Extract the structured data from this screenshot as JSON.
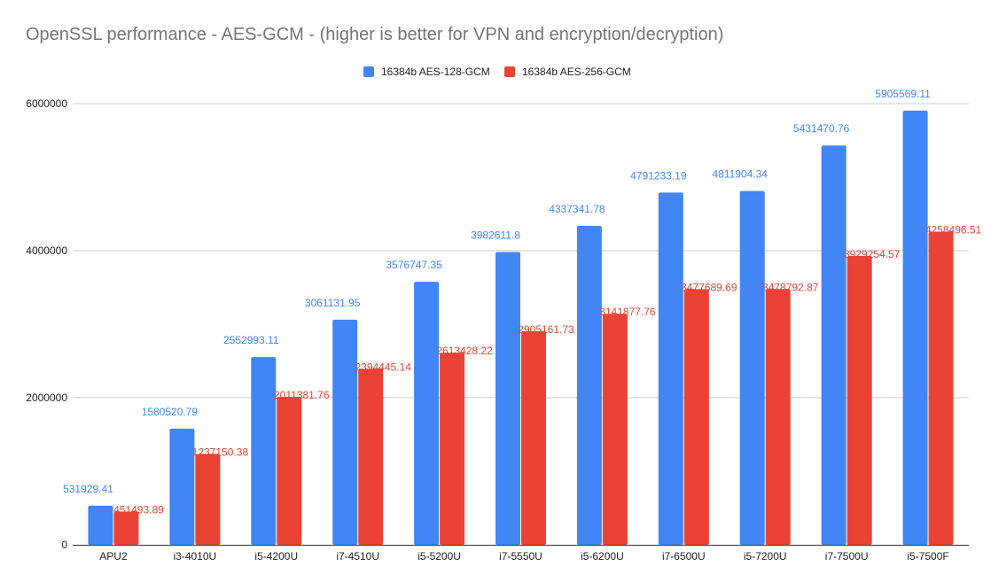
{
  "chart_data": {
    "type": "bar",
    "title": "OpenSSL performance - AES-GCM - (higher is better for VPN and encryption/decryption)",
    "xlabel": "",
    "ylabel": "",
    "ylim": [
      0,
      6000000
    ],
    "yticks": [
      0,
      2000000,
      4000000,
      6000000
    ],
    "grid": true,
    "legend_position": "top",
    "categories": [
      "APU2",
      "i3-4010U",
      "i5-4200U",
      "i7-4510U",
      "i5-5200U",
      "i7-5550U",
      "i5-6200U",
      "i7-6500U",
      "i5-7200U",
      "i7-7500U",
      "i5-7500F"
    ],
    "series": [
      {
        "name": "16384b AES-128-GCM",
        "color": "#4285f4",
        "values": [
          531929.41,
          1580520.79,
          2552993.11,
          3061131.95,
          3576747.35,
          3982611.8,
          4337341.78,
          4791233.19,
          4811904.34,
          5431470.76,
          5905569.11
        ],
        "labels": [
          "531929.41",
          "1580520.79",
          "2552993.11",
          "3061131.95",
          "3576747.35",
          "3982611.8",
          "4337341.78",
          "4791233.19",
          "4811904.34",
          "5431470.76",
          "5905569.11"
        ]
      },
      {
        "name": "16384b AES-256-GCM",
        "color": "#ea4335",
        "values": [
          451493.89,
          1237150.38,
          2011381.76,
          2394445.14,
          2613428.22,
          2905161.73,
          3141877.76,
          3477689.69,
          3478792.87,
          3929254.57,
          4258496.51
        ],
        "labels": [
          "451493.89",
          "1237150.38",
          "2011381.76",
          "2394445.14",
          "2613428.22",
          "2905161.73",
          "3141877.76",
          "3477689.69",
          "3478792.87",
          "3929254.57",
          "4258496.51"
        ]
      }
    ]
  },
  "colors": {
    "grid": "#cccccc",
    "axis": "#333333",
    "title": "#757575"
  }
}
